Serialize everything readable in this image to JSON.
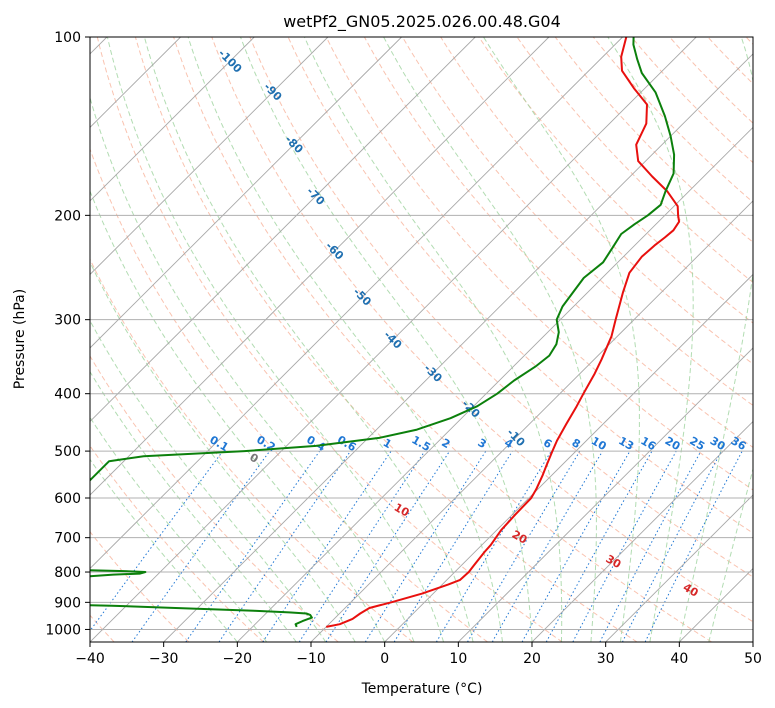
{
  "chart_data": {
    "type": "line",
    "subtype": "skew-t log-p diagram",
    "title": "wetPf2_GN05.2025.026.00.48.G04",
    "xlabel": "Temperature (°C)",
    "ylabel": "Pressure (hPa)",
    "xlim": [
      -40,
      50
    ],
    "ylim": [
      1050,
      100
    ],
    "y_scale": "log",
    "x_ticks": [
      "−40",
      "−30",
      "−20",
      "−10",
      "0",
      "10",
      "20",
      "30",
      "40",
      "50"
    ],
    "y_ticks": [
      "100",
      "200",
      "300",
      "400",
      "500",
      "600",
      "700",
      "800",
      "900",
      "1000"
    ],
    "y_tick_values": [
      100,
      200,
      300,
      400,
      500,
      600,
      700,
      800,
      900,
      1000
    ],
    "grid": true,
    "skew": 35,
    "isotherm_labels": [
      "-100",
      "-90",
      "-80",
      "-70",
      "-60",
      "-50",
      "-40",
      "-30",
      "-20",
      "-10"
    ],
    "isotherm_label_values": [
      -100,
      -90,
      -80,
      -70,
      -60,
      -50,
      -40,
      -30,
      -20,
      -10
    ],
    "mixing_ratio_labels": [
      "0.1",
      "0.2",
      "0.4",
      "0.6",
      "1",
      "1.5",
      "2",
      "3",
      "4",
      "6",
      "8",
      "10",
      "13",
      "16",
      "20",
      "25",
      "30",
      "36"
    ],
    "mixing_ratio_values": [
      0.1,
      0.2,
      0.4,
      0.6,
      1,
      1.5,
      2,
      3,
      4,
      6,
      8,
      10,
      13,
      16,
      20,
      25,
      30,
      36
    ],
    "moist_adiabat_labels": [
      "0",
      "10",
      "20",
      "30",
      "40"
    ],
    "moist_adiabat_values": [
      0,
      10,
      20,
      30,
      40
    ],
    "colors": {
      "temperature": "#e8100e",
      "dewpoint": "#0c800c",
      "isotherm": "#a8a8a8",
      "dry_adiabat": "#f7a98e",
      "moist_adiabat": "#9fd39f",
      "mixing_ratio": "#1f77d4",
      "isotherm_label": "#1f6fb0",
      "moist_label": "#d62728",
      "zero_label": "#777777",
      "grid": "#b0b0b0"
    },
    "series": [
      {
        "key": "temperature",
        "points": [
          [
            -10.0,
            990
          ],
          [
            -8.5,
            980
          ],
          [
            -7.5,
            960
          ],
          [
            -7.2,
            940
          ],
          [
            -6.7,
            920
          ],
          [
            -4.5,
            900
          ],
          [
            -1.5,
            870
          ],
          [
            0.8,
            840
          ],
          [
            1.8,
            825
          ],
          [
            1.9,
            800
          ],
          [
            1.7,
            780
          ],
          [
            1.3,
            740
          ],
          [
            1.2,
            720
          ],
          [
            0.6,
            680
          ],
          [
            0.4,
            640
          ],
          [
            0.3,
            600
          ],
          [
            -0.2,
            580
          ],
          [
            -1.2,
            550
          ],
          [
            -2.0,
            530
          ],
          [
            -3.2,
            500
          ],
          [
            -4.0,
            480
          ],
          [
            -5.0,
            450
          ],
          [
            -6.0,
            420
          ],
          [
            -6.8,
            400
          ],
          [
            -8.0,
            370
          ],
          [
            -9.0,
            350
          ],
          [
            -10.8,
            320
          ],
          [
            -12.5,
            300
          ],
          [
            -15.2,
            270
          ],
          [
            -17.0,
            250
          ],
          [
            -17.5,
            235
          ],
          [
            -17.3,
            225
          ],
          [
            -17.0,
            218
          ],
          [
            -16.8,
            212
          ],
          [
            -17.2,
            205
          ],
          [
            -18.2,
            200
          ],
          [
            -19.5,
            193
          ],
          [
            -23.0,
            182
          ],
          [
            -27.0,
            172
          ],
          [
            -31.0,
            162
          ],
          [
            -33.5,
            152
          ],
          [
            -35.0,
            140
          ],
          [
            -37.5,
            130
          ],
          [
            -41.5,
            122
          ],
          [
            -45.5,
            114
          ],
          [
            -47.5,
            108
          ],
          [
            -49.5,
            100
          ]
        ]
      },
      {
        "key": "dewpoint",
        "points": [
          [
            -14.0,
            990
          ],
          [
            -14.5,
            980
          ],
          [
            -14.0,
            968
          ],
          [
            -13.2,
            955
          ],
          [
            -13.8,
            945
          ],
          [
            -14.5,
            940
          ],
          [
            -17.0,
            936
          ],
          [
            -22.0,
            930
          ],
          [
            -33.0,
            920
          ],
          [
            -42.0,
            912
          ],
          [
            -54.0,
            905
          ],
          [
            -58.0,
            895
          ],
          [
            -62.0,
            880
          ],
          [
            -62.0,
            860
          ],
          [
            -60.0,
            835
          ],
          [
            -55.0,
            825
          ],
          [
            -50.0,
            815
          ],
          [
            -46.0,
            808
          ],
          [
            -42.5,
            805
          ],
          [
            -42.0,
            800
          ],
          [
            -45.0,
            797
          ],
          [
            -52.0,
            793
          ],
          [
            -60.0,
            788
          ],
          [
            -62.0,
            780
          ],
          [
            -62.0,
            700
          ],
          [
            -62.0,
            600
          ],
          [
            -62.0,
            520
          ],
          [
            -58.0,
            510
          ],
          [
            -45.0,
            500
          ],
          [
            -36.0,
            490
          ],
          [
            -28.5,
            475
          ],
          [
            -24.5,
            460
          ],
          [
            -21.5,
            440
          ],
          [
            -19.5,
            420
          ],
          [
            -18.5,
            400
          ],
          [
            -18.0,
            380
          ],
          [
            -17.0,
            360
          ],
          [
            -16.6,
            345
          ],
          [
            -17.2,
            330
          ],
          [
            -18.5,
            315
          ],
          [
            -20.5,
            300
          ],
          [
            -21.5,
            285
          ],
          [
            -22.0,
            270
          ],
          [
            -22.5,
            255
          ],
          [
            -22.0,
            240
          ],
          [
            -22.8,
            225
          ],
          [
            -23.4,
            215
          ],
          [
            -22.9,
            207
          ],
          [
            -22.3,
            200
          ],
          [
            -22.0,
            192
          ],
          [
            -23.2,
            182
          ],
          [
            -24.5,
            170
          ],
          [
            -27.0,
            158
          ],
          [
            -30.0,
            147
          ],
          [
            -33.5,
            136
          ],
          [
            -38.0,
            124
          ],
          [
            -42.5,
            115
          ],
          [
            -45.0,
            109
          ],
          [
            -47.5,
            103
          ],
          [
            -48.5,
            100
          ]
        ]
      }
    ]
  }
}
